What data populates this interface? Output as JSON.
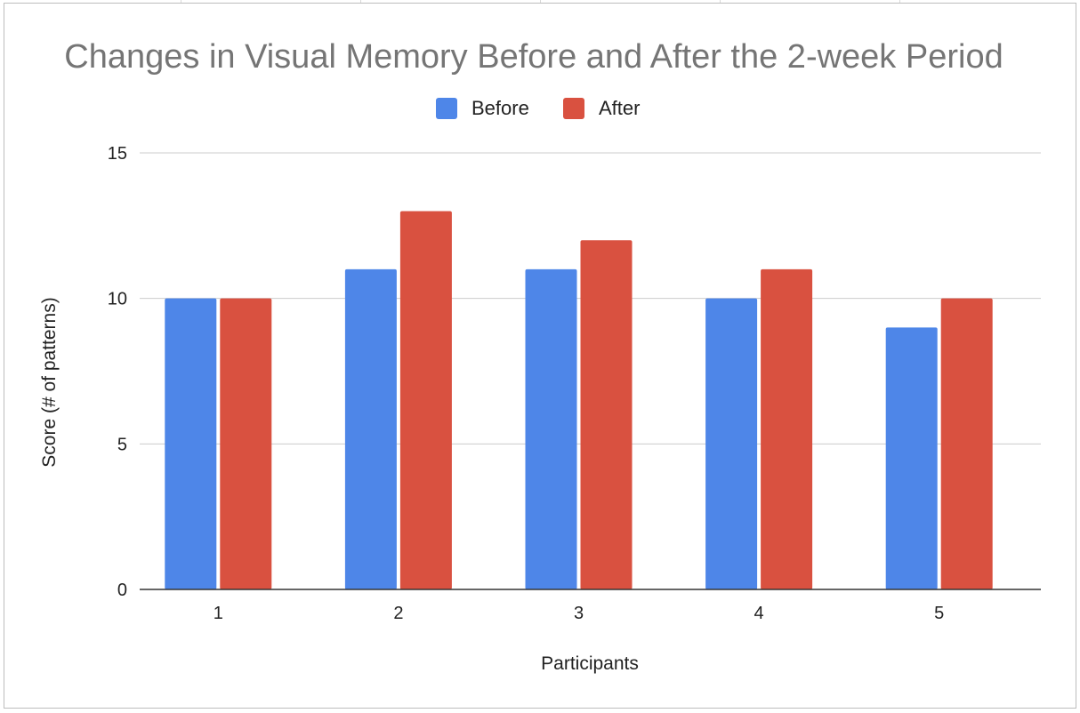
{
  "chart_data": {
    "type": "bar",
    "title": "Changes in Visual Memory Before and After the 2-week Period",
    "xlabel": "Participants",
    "ylabel": "Score (# of patterns)",
    "categories": [
      "1",
      "2",
      "3",
      "4",
      "5"
    ],
    "series": [
      {
        "name": "Before",
        "color": "#4e86e8",
        "values": [
          10,
          11,
          11,
          10,
          9
        ]
      },
      {
        "name": "After",
        "color": "#d95140",
        "values": [
          10,
          13,
          12,
          11,
          10
        ]
      }
    ],
    "ylim": [
      0,
      15
    ],
    "yticks": [
      "0",
      "5",
      "10",
      "15"
    ],
    "grid": true,
    "legend_position": "top"
  }
}
